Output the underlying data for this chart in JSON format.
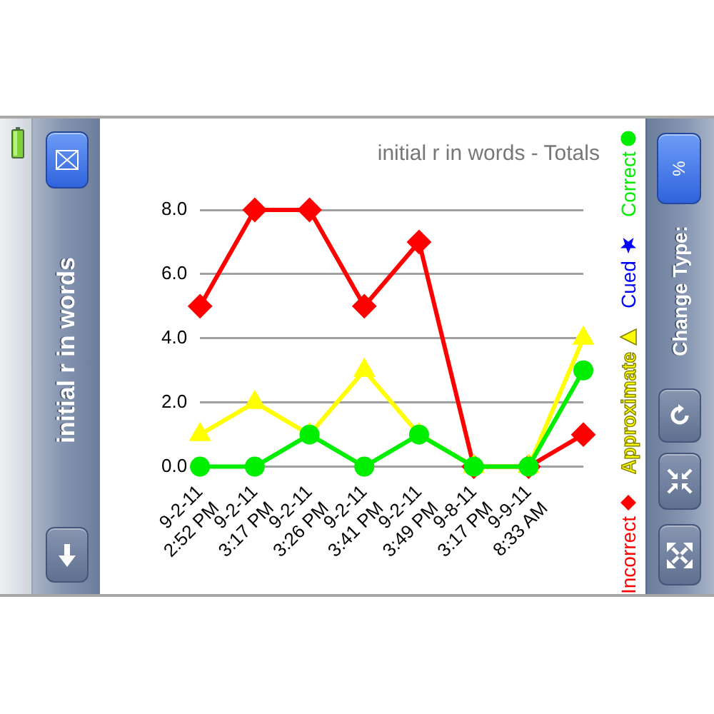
{
  "chart_data": {
    "type": "line",
    "title": "initial r in words - Totals",
    "categories": [
      "9-2-11 2:52 PM",
      "9-2-11 3:17 PM",
      "9-2-11 3:26 PM",
      "9-2-11 3:41 PM",
      "9-2-11 3:49 PM",
      "9-8-11 3:17 PM",
      "9-9-11 8:33 AM",
      null
    ],
    "series": [
      {
        "name": "Incorrect",
        "color": "#ff0000",
        "marker": "diamond",
        "values": [
          5,
          8,
          8,
          5,
          7,
          0,
          0,
          1
        ]
      },
      {
        "name": "Approximate",
        "color": "#ffff00",
        "marker": "triangle",
        "values": [
          1,
          2,
          1,
          3,
          1,
          0,
          0,
          4
        ]
      },
      {
        "name": "Cued",
        "color": "#0000ff",
        "marker": "star",
        "values": [
          null,
          null,
          null,
          null,
          null,
          null,
          null,
          null
        ]
      },
      {
        "name": "Correct",
        "color": "#00ee00",
        "marker": "circle",
        "values": [
          0,
          0,
          1,
          0,
          1,
          0,
          0,
          3
        ]
      }
    ],
    "ylim": [
      0,
      8
    ],
    "yticks": [
      {
        "value": 0,
        "label": "0.0"
      },
      {
        "value": 2,
        "label": "2.0"
      },
      {
        "value": 4,
        "label": "4.0"
      },
      {
        "value": 6,
        "label": "6.0"
      },
      {
        "value": 8,
        "label": "8.0"
      }
    ],
    "grid": "y",
    "legend": "right",
    "annotations": [
      "initial r in words",
      "Change Type:",
      "%"
    ]
  }
}
